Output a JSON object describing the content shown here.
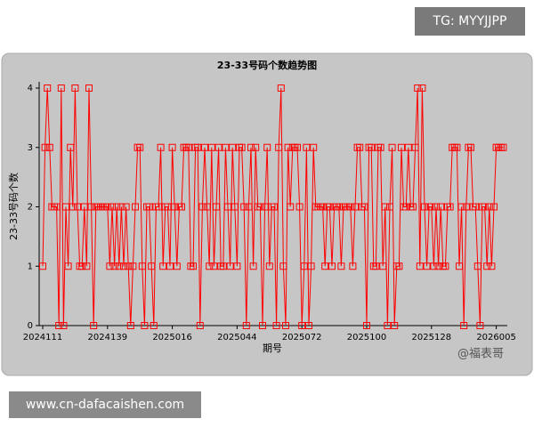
{
  "tg_label": "TG: MYYJJPP",
  "website": "www.cn-dafacaishen.com",
  "watermark": "@福表哥",
  "chart_data": {
    "type": "line",
    "title": "23-33号码个数趋势图",
    "x_label": "期号",
    "y_label": "23-33号码个数",
    "categories": [
      "2024111",
      null,
      null,
      null,
      null,
      null,
      null,
      null,
      null,
      null,
      null,
      null,
      null,
      null,
      null,
      null,
      null,
      null,
      null,
      null,
      null,
      null,
      null,
      null,
      null,
      null,
      null,
      null,
      "2024139",
      null,
      null,
      null,
      null,
      null,
      null,
      null,
      null,
      null,
      null,
      null,
      null,
      null,
      null,
      null,
      null,
      null,
      null,
      null,
      null,
      null,
      null,
      null,
      null,
      null,
      null,
      null,
      "2025016",
      null,
      null,
      null,
      null,
      null,
      null,
      null,
      null,
      null,
      null,
      null,
      null,
      null,
      null,
      null,
      null,
      null,
      null,
      null,
      null,
      null,
      null,
      null,
      null,
      null,
      null,
      null,
      "2025044",
      null,
      null,
      null,
      null,
      null,
      null,
      null,
      null,
      null,
      null,
      null,
      null,
      null,
      null,
      null,
      null,
      null,
      null,
      null,
      null,
      null,
      null,
      null,
      null,
      null,
      null,
      null,
      "2025072",
      null,
      null,
      null,
      null,
      null,
      null,
      null,
      null,
      null,
      null,
      null,
      null,
      null,
      null,
      null,
      null,
      null,
      null,
      null,
      null,
      null,
      null,
      null,
      null,
      null,
      null,
      null,
      "2025100",
      null,
      null,
      null,
      null,
      null,
      null,
      null,
      null,
      null,
      null,
      null,
      null,
      null,
      null,
      null,
      null,
      null,
      null,
      null,
      null,
      null,
      null,
      null,
      null,
      null,
      null,
      null,
      "2025128",
      null,
      null,
      null,
      null,
      null,
      null,
      null,
      null,
      null,
      null,
      null,
      null,
      null,
      null,
      null,
      null,
      null,
      null,
      null,
      null,
      null,
      null,
      null,
      null,
      null,
      null,
      null,
      "2026005",
      null,
      null,
      null
    ],
    "series": [
      {
        "color": "#ff0000",
        "values": [
          1,
          3,
          4,
          3,
          2,
          2,
          2,
          0,
          4,
          0,
          2,
          1,
          3,
          2,
          4,
          2,
          1,
          1,
          2,
          1,
          4,
          2,
          0,
          2,
          2,
          2,
          2,
          2,
          2,
          1,
          2,
          1,
          2,
          1,
          2,
          1,
          2,
          1,
          0,
          1,
          2,
          3,
          3,
          1,
          0,
          2,
          2,
          1,
          0,
          2,
          2,
          3,
          1,
          2,
          2,
          1,
          3,
          2,
          1,
          2,
          2,
          3,
          3,
          3,
          1,
          1,
          3,
          3,
          0,
          2,
          3,
          2,
          1,
          3,
          1,
          2,
          3,
          1,
          1,
          3,
          2,
          1,
          3,
          2,
          1,
          3,
          3,
          2,
          0,
          2,
          3,
          1,
          3,
          2,
          2,
          0,
          2,
          3,
          1,
          2,
          2,
          0,
          3,
          4,
          1,
          0,
          3,
          2,
          3,
          3,
          3,
          2,
          0,
          1,
          3,
          0,
          1,
          3,
          2,
          2,
          2,
          2,
          1,
          2,
          2,
          1,
          2,
          2,
          2,
          1,
          2,
          2,
          2,
          2,
          1,
          2,
          3,
          3,
          2,
          2,
          0,
          3,
          3,
          1,
          1,
          3,
          3,
          1,
          2,
          0,
          2,
          3,
          0,
          1,
          1,
          3,
          2,
          2,
          3,
          2,
          2,
          3,
          4,
          1,
          4,
          2,
          1,
          2,
          2,
          1,
          2,
          1,
          2,
          1,
          1,
          2,
          2,
          3,
          3,
          3,
          1,
          2,
          0,
          2,
          3,
          3,
          2,
          2,
          1,
          0,
          2,
          2,
          1,
          2,
          1,
          2,
          3,
          3,
          3,
          3
        ]
      }
    ],
    "ylim": [
      0,
      4
    ],
    "yticks": [
      0,
      1,
      2,
      3,
      4
    ]
  }
}
